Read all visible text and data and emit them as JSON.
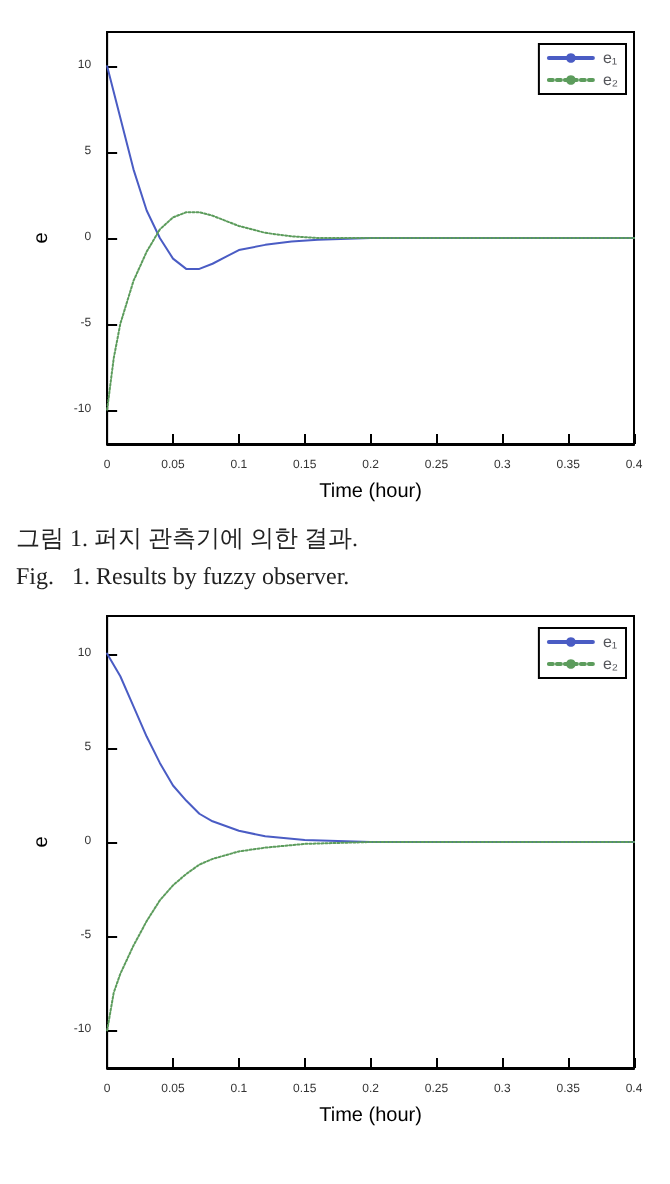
{
  "chart_data": [
    {
      "type": "line",
      "xlabel": "Time (hour)",
      "ylabel": "e",
      "xlim": [
        0,
        0.4
      ],
      "xticks": [
        0,
        0.05,
        0.1,
        0.15,
        0.2,
        0.25,
        0.3,
        0.35,
        0.4
      ],
      "ylim": [
        -12,
        12
      ],
      "yticks": [
        -10,
        -5,
        0,
        5,
        10
      ],
      "grid": false,
      "legend": "top right",
      "marker": "none",
      "annotations": [
        "그림 1. 퍼지 관측기에 의한 결과.",
        "Fig.   1. Results by fuzzy observer."
      ],
      "series": [
        {
          "name": "e₁",
          "color": "#4a5cc4",
          "line_style": "solid",
          "x": [
            0,
            0.01,
            0.02,
            0.03,
            0.04,
            0.05,
            0.06,
            0.07,
            0.08,
            0.09,
            0.1,
            0.12,
            0.14,
            0.16,
            0.2,
            0.4
          ],
          "values": [
            10,
            7,
            4,
            1.6,
            0,
            -1.2,
            -1.8,
            -1.8,
            -1.5,
            -1.1,
            -0.7,
            -0.4,
            -0.2,
            -0.1,
            0,
            0
          ]
        },
        {
          "name": "e₂",
          "color": "#5c9c5c",
          "line_style": "dotted",
          "x": [
            0,
            0.005,
            0.01,
            0.02,
            0.03,
            0.04,
            0.05,
            0.06,
            0.07,
            0.08,
            0.09,
            0.1,
            0.12,
            0.14,
            0.16,
            0.2,
            0.4
          ],
          "values": [
            -10,
            -7,
            -5,
            -2.5,
            -0.8,
            0.5,
            1.2,
            1.5,
            1.5,
            1.3,
            1,
            0.7,
            0.3,
            0.1,
            0,
            0,
            0
          ]
        }
      ]
    },
    {
      "type": "line",
      "xlabel": "Time (hour)",
      "ylabel": "e",
      "xlim": [
        0,
        0.4
      ],
      "xticks": [
        0,
        0.05,
        0.1,
        0.15,
        0.2,
        0.25,
        0.3,
        0.35,
        0.4
      ],
      "ylim": [
        -12,
        12
      ],
      "yticks": [
        -10,
        -5,
        0,
        5,
        10
      ],
      "grid": false,
      "legend": "top right",
      "marker": "none",
      "series": [
        {
          "name": "e₁",
          "color": "#4a5cc4",
          "line_style": "solid",
          "x": [
            0,
            0.01,
            0.02,
            0.03,
            0.04,
            0.05,
            0.06,
            0.07,
            0.08,
            0.1,
            0.12,
            0.15,
            0.2,
            0.4
          ],
          "values": [
            10,
            8.8,
            7.2,
            5.6,
            4.2,
            3,
            2.2,
            1.5,
            1.1,
            0.6,
            0.3,
            0.1,
            0,
            0
          ]
        },
        {
          "name": "e₂",
          "color": "#5c9c5c",
          "line_style": "dotted",
          "x": [
            0,
            0.005,
            0.01,
            0.02,
            0.03,
            0.04,
            0.05,
            0.06,
            0.07,
            0.08,
            0.1,
            0.12,
            0.15,
            0.2,
            0.4
          ],
          "values": [
            -10,
            -8,
            -7,
            -5.5,
            -4.2,
            -3.1,
            -2.3,
            -1.7,
            -1.2,
            -0.9,
            -0.5,
            -0.3,
            -0.1,
            0,
            0
          ]
        }
      ]
    }
  ]
}
